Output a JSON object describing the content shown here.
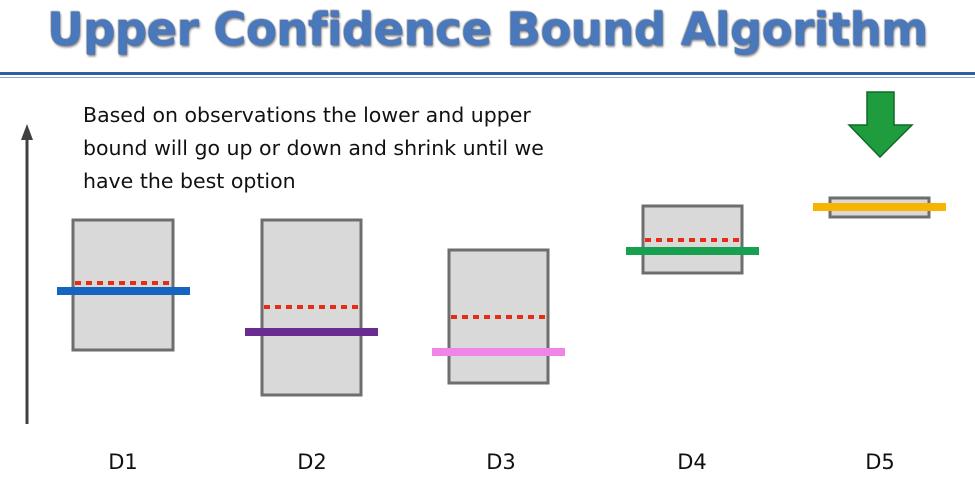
{
  "title": "Upper Confidence Bound Algorithm",
  "caption": [
    "Based on observations the lower and upper",
    "bound will go up or down and shrink until we",
    "have the best option"
  ],
  "machines": [
    {
      "label": "D1",
      "bar_color": "#1565c0"
    },
    {
      "label": "D2",
      "bar_color": "#6a2c91"
    },
    {
      "label": "D3",
      "bar_color": "#ef85e4"
    },
    {
      "label": "D4",
      "bar_color": "#17a04f"
    },
    {
      "label": "D5",
      "bar_color": "#f7b500"
    }
  ],
  "colors": {
    "title": "#4a78bd",
    "box_fill": "#d9d9d9",
    "box_stroke": "#6e6e6e",
    "dotted_line": "#e52d16",
    "axis": "#404040",
    "selection_arrow": "#1e9c3e"
  },
  "icons": {
    "axis": "vertical-axis-arrow",
    "selection": "down-arrow-icon"
  }
}
